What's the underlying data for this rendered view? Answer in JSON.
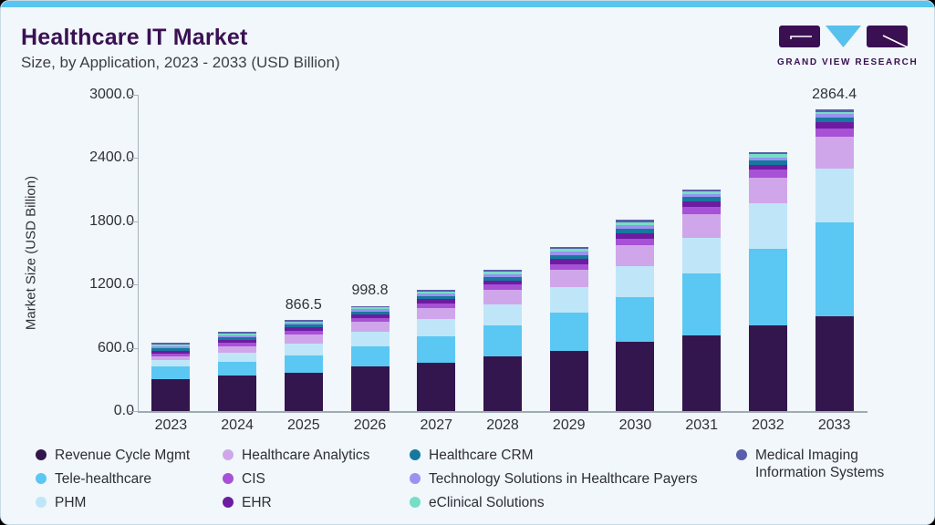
{
  "header": {
    "title": "Healthcare IT Market",
    "subtitle": "Size, by Application, 2023 - 2033 (USD Billion)",
    "logo_text": "GRAND VIEW RESEARCH"
  },
  "colors": {
    "accent_bar": "#58c5f1",
    "card_background": "#f1f7fa",
    "title": "#3a1053",
    "axis_text": "#30303b",
    "axis_line": "#a8b4bb"
  },
  "chart_data": {
    "type": "bar",
    "stacked": true,
    "title": "Healthcare IT Market",
    "subtitle": "Size, by Application, 2023 - 2033 (USD Billion)",
    "xlabel": "",
    "ylabel": "Market Size (USD Billion)",
    "ylim": [
      0,
      3000
    ],
    "y_axis_ticks": [
      "3000.0",
      "2400.0",
      "1800.0",
      "1200.0",
      "600.0",
      "0.0"
    ],
    "grid": false,
    "legend_position": "bottom",
    "categories": [
      "2023",
      "2024",
      "2025",
      "2026",
      "2027",
      "2028",
      "2029",
      "2030",
      "2031",
      "2032",
      "2033"
    ],
    "series": [
      {
        "name": "Revenue Cycle Mgmt",
        "color": "#32164d",
        "values": [
          307,
          335,
          366,
          420,
          462,
          515,
          575,
          655,
          722,
          810,
          901.4
        ]
      },
      {
        "name": "Tele-healthcare",
        "color": "#5bc7f3",
        "values": [
          114,
          135,
          160,
          198,
          243,
          296,
          360,
          430,
          580,
          730,
          885
        ]
      },
      {
        "name": "PHM",
        "color": "#bfe6f8",
        "values": [
          61,
          84,
          111,
          131,
          165,
          198,
          240,
          290,
          340,
          430,
          515
        ]
      },
      {
        "name": "Healthcare Analytics",
        "color": "#d0a6ea",
        "values": [
          35,
          62,
          92,
          96,
          110,
          140,
          165,
          195,
          227,
          247,
          300
        ]
      },
      {
        "name": "CIS",
        "color": "#a751d6",
        "values": [
          29,
          31,
          34,
          38,
          43,
          49,
          56,
          64,
          68,
          73,
          80
        ]
      },
      {
        "name": "EHR",
        "color": "#6d1ba1",
        "values": [
          28,
          29,
          30,
          33,
          37,
          41,
          47,
          53,
          50,
          45,
          56
        ]
      },
      {
        "name": "Healthcare CRM",
        "color": "#16789e",
        "values": [
          24,
          24,
          25,
          28,
          31,
          35,
          40,
          45,
          42,
          44,
          46
        ]
      },
      {
        "name": "Technology Solutions in Healthcare Payers",
        "color": "#9793ef",
        "values": [
          19,
          19,
          19,
          21,
          24,
          27,
          30,
          34,
          31,
          29,
          32
        ]
      },
      {
        "name": "eClinical Solutions",
        "color": "#76ddc6",
        "values": [
          16,
          15,
          15,
          17,
          19,
          22,
          24,
          27,
          24,
          29,
          24
        ]
      },
      {
        "name": "Medical Imaging Information Systems",
        "color": "#5a5fa9",
        "values": [
          17,
          16,
          14.5,
          16.8,
          18,
          20,
          22,
          25,
          22,
          23,
          25
        ]
      }
    ],
    "bar_totals": [
      650,
      750,
      866.5,
      998.8,
      1152,
      1343,
      1559,
      1818,
      2106,
      2460,
      2864.4
    ],
    "total_labels": [
      {
        "category": "2025",
        "text": "866.5"
      },
      {
        "category": "2026",
        "text": "998.8"
      },
      {
        "category": "2033",
        "text": "2864.4"
      }
    ],
    "legend_columns": [
      {
        "series_indices": [
          0,
          1,
          2
        ]
      },
      {
        "series_indices": [
          3,
          4,
          5
        ]
      },
      {
        "series_indices": [
          6,
          7,
          8
        ]
      },
      {
        "series_indices": [
          9
        ]
      }
    ]
  }
}
